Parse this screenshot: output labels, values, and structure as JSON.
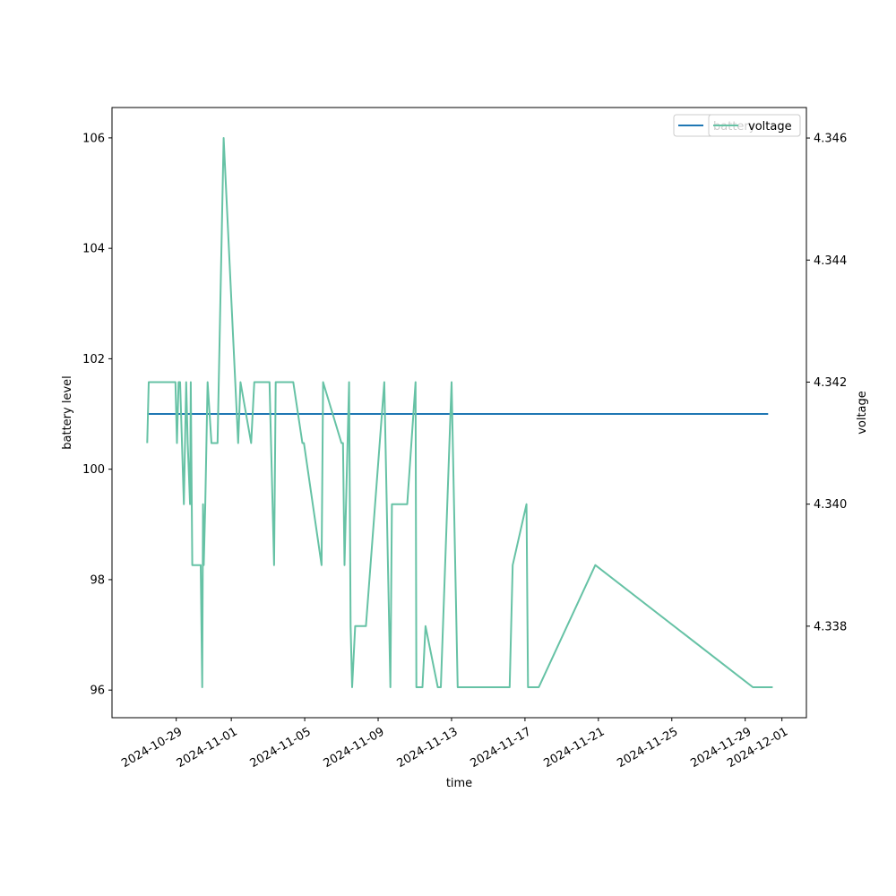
{
  "chart_data": {
    "type": "line",
    "title": "",
    "xlabel": "time",
    "ylabel": "battery level",
    "y2label": "voltage",
    "xlim": [
      "2024-10-25T12:00",
      "2024-12-02T08:00"
    ],
    "ylim": [
      95.5,
      106.55
    ],
    "y2lim": [
      4.3365,
      4.3465
    ],
    "x_ticks": [
      "2024-10-29",
      "2024-11-01",
      "2024-11-05",
      "2024-11-09",
      "2024-11-13",
      "2024-11-17",
      "2024-11-21",
      "2024-11-25",
      "2024-11-29",
      "2024-12-01"
    ],
    "y_ticks": [
      "96",
      "98",
      "100",
      "102",
      "104",
      "106"
    ],
    "y2_ticks": [
      "4.338",
      "4.340",
      "4.342",
      "4.344",
      "4.346"
    ],
    "grid": false,
    "legend_position": "top-right",
    "series": [
      {
        "name": "battery",
        "axis": "left",
        "color": "#1f77b4",
        "x": [
          "2024-10-27T10:00",
          "2024-11-30T06:00"
        ],
        "y": [
          101,
          101
        ]
      },
      {
        "name": "voltage",
        "axis": "right",
        "color": "#66c2a5",
        "x": [
          "2024-10-27T10:00",
          "2024-10-27T12:00",
          "2024-10-28T23:00",
          "2024-10-29T01:00",
          "2024-10-29T03:00",
          "2024-10-29T05:00",
          "2024-10-29T10:00",
          "2024-10-29T13:00",
          "2024-10-29T15:00",
          "2024-10-29T18:00",
          "2024-10-29T19:00",
          "2024-10-29T21:00",
          "2024-10-29T23:00",
          "2024-10-30T08:00",
          "2024-10-30T10:00",
          "2024-10-30T11:00",
          "2024-10-30T12:00",
          "2024-10-30T14:00",
          "2024-10-30T17:00",
          "2024-10-30T22:00",
          "2024-10-31T02:00",
          "2024-10-31T06:00",
          "2024-10-31T14:00",
          "2024-11-01T09:00",
          "2024-11-01T12:00",
          "2024-11-02T02:00",
          "2024-11-02T06:00",
          "2024-11-03T02:00",
          "2024-11-03T08:00",
          "2024-11-03T10:00",
          "2024-11-04T09:00",
          "2024-11-04T21:00",
          "2024-11-04T22:00",
          "2024-11-04T23:00",
          "2024-11-05T22:00",
          "2024-11-06T00:00",
          "2024-11-07T00:00",
          "2024-11-07T02:00",
          "2024-11-07T04:00",
          "2024-11-07T10:00",
          "2024-11-07T12:00",
          "2024-11-07T14:00",
          "2024-11-07T18:00",
          "2024-11-08T08:00",
          "2024-11-09T08:00",
          "2024-11-09T16:00",
          "2024-11-09T18:00",
          "2024-11-10T14:00",
          "2024-11-11T01:00",
          "2024-11-11T02:00",
          "2024-11-11T08:00",
          "2024-11-11T10:00",
          "2024-11-11T14:00",
          "2024-11-12T06:00",
          "2024-11-12T10:00",
          "2024-11-13T00:00",
          "2024-11-13T08:00",
          "2024-11-16T04:00",
          "2024-11-16T08:00",
          "2024-11-17T02:00",
          "2024-11-17T04:00",
          "2024-11-17T10:00",
          "2024-11-17T18:00",
          "2024-11-20T20:00",
          "2024-11-29T10:00",
          "2024-11-30T06:00",
          "2024-11-30T12:00"
        ],
        "y": [
          4.341,
          4.342,
          4.342,
          4.341,
          4.342,
          4.342,
          4.34,
          4.342,
          4.341,
          4.34,
          4.342,
          4.339,
          4.339,
          4.339,
          4.337,
          4.34,
          4.339,
          4.34,
          4.342,
          4.341,
          4.341,
          4.341,
          4.346,
          4.341,
          4.342,
          4.341,
          4.342,
          4.342,
          4.339,
          4.342,
          4.342,
          4.341,
          4.341,
          4.341,
          4.339,
          4.342,
          4.341,
          4.341,
          4.339,
          4.342,
          4.338,
          4.337,
          4.338,
          4.338,
          4.342,
          4.337,
          4.34,
          4.34,
          4.342,
          4.337,
          4.337,
          4.337,
          4.338,
          4.337,
          4.337,
          4.342,
          4.337,
          4.337,
          4.339,
          4.34,
          4.337,
          4.337,
          4.337,
          4.339,
          4.337,
          4.337,
          4.337
        ]
      }
    ]
  }
}
